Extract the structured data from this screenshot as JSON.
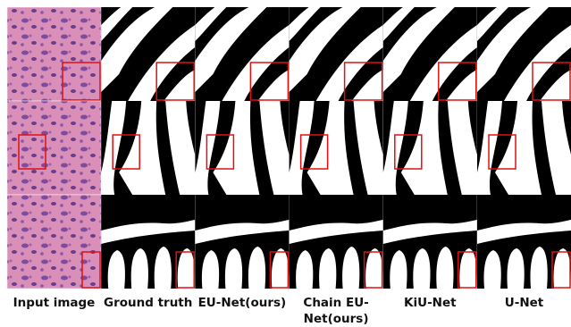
{
  "figure": {
    "columns": [
      "Input image",
      "Ground truth",
      "EU-Net(ours)",
      "Chain EU-Net(ours)",
      "KiU-Net",
      "U-Net"
    ]
  }
}
